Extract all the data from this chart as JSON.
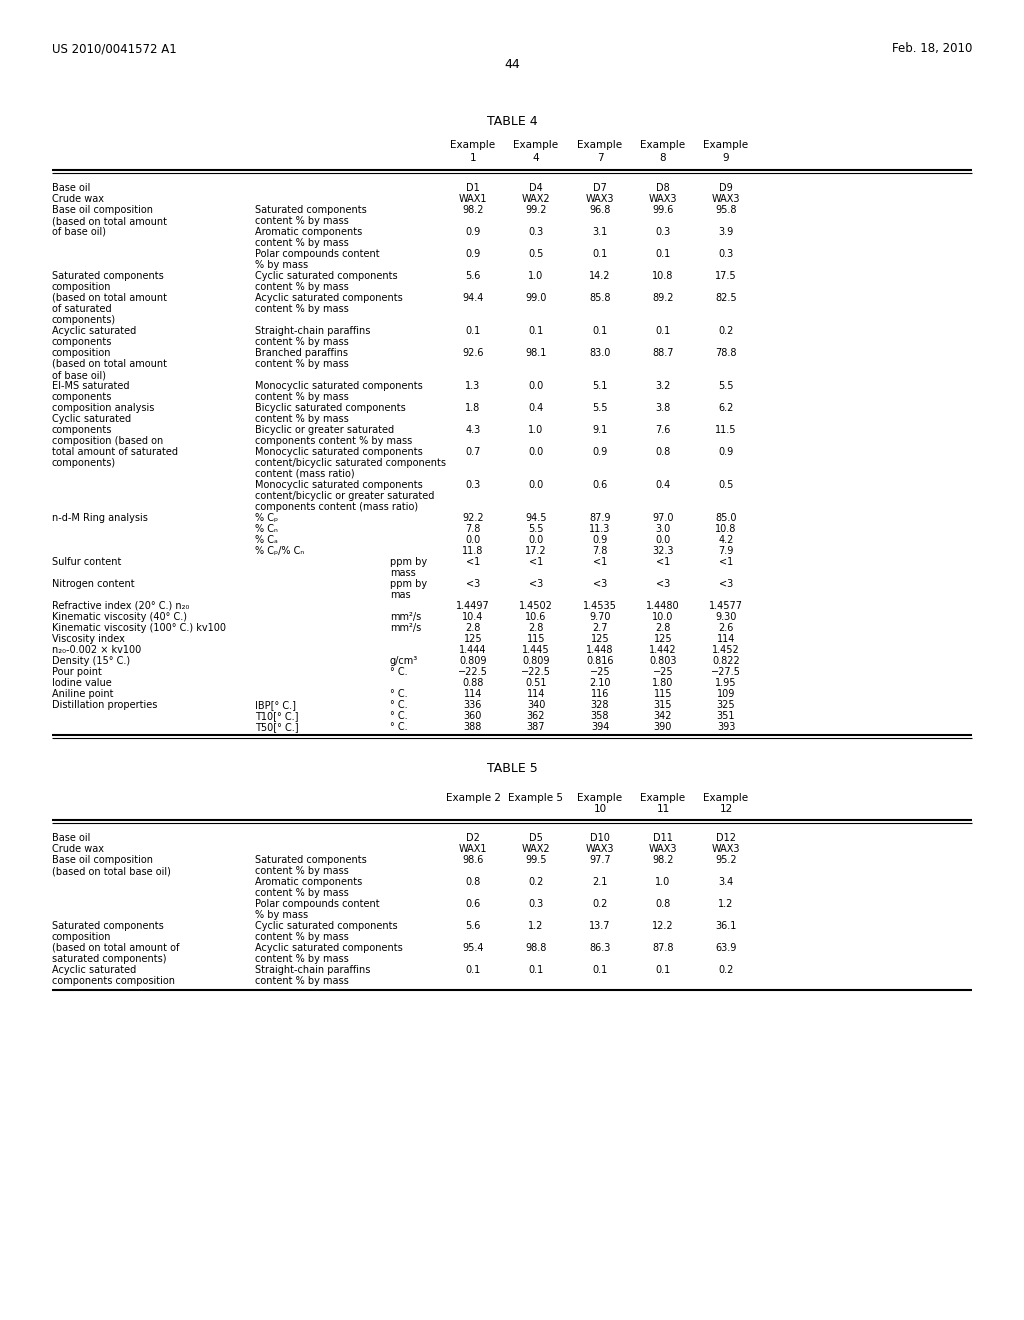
{
  "bg_color": "#ffffff",
  "header_left": "US 2010/0041572 A1",
  "header_right": "Feb. 18, 2010",
  "page_number": "44",
  "table4_title": "TABLE 4",
  "table5_title": "TABLE 5",
  "fig_width": 10.24,
  "fig_height": 13.2,
  "dpi": 100
}
